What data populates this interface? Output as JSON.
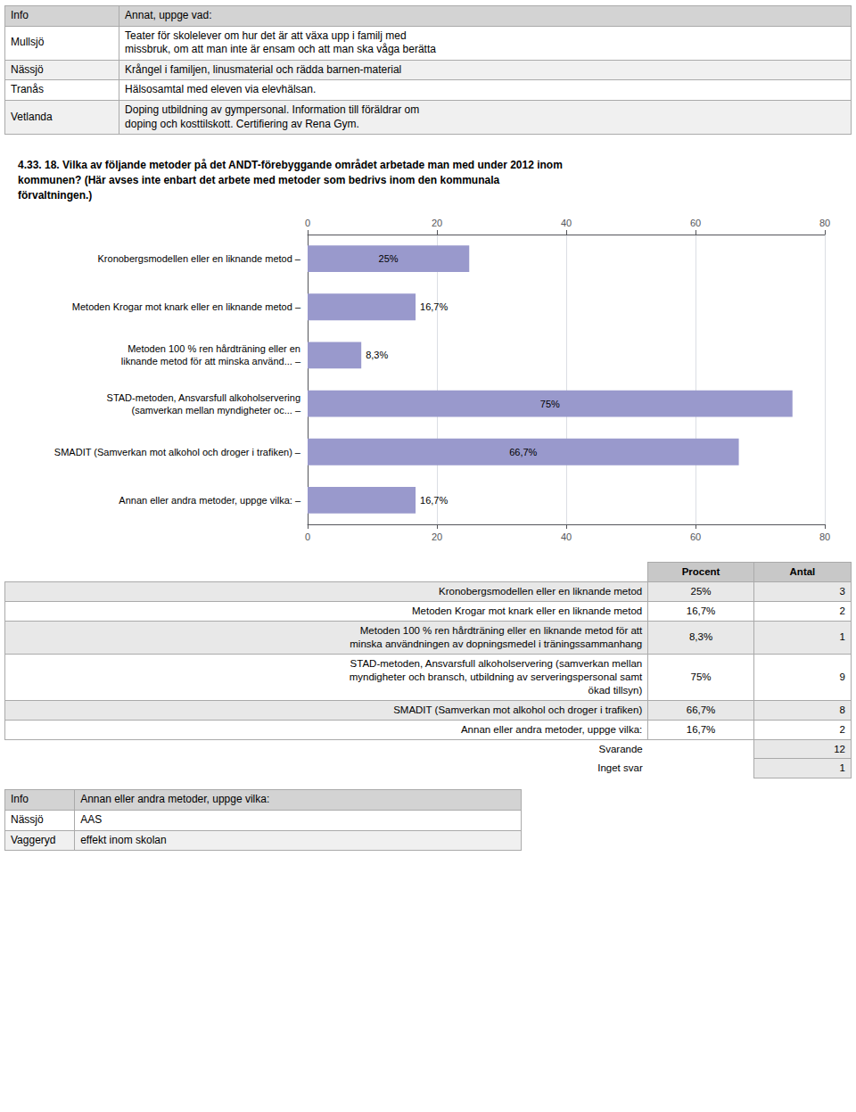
{
  "chart_data": {
    "type": "bar",
    "title": "4.33. 18. Vilka av följande metoder på det ANDT-förebyggande området arbetade man med under 2012 inom\nkommunen? (Här avses inte enbart det arbete med metoder som bedrivs inom den kommunala\nförvaltningen.)",
    "categories": [
      "Kronobergsmodellen eller en liknande metod –",
      "Metoden Krogar mot knark eller en liknande metod –",
      "Metoden 100 % ren hårdträning eller en\nliknande metod för att minska använd... –",
      "STAD-metoden, Ansvarsfull alkoholservering\n(samverkan mellan myndigheter oc... –",
      "SMADIT (Samverkan mot alkohol och droger i trafiken) –",
      "Annan eller andra metoder, uppge vilka: –"
    ],
    "values": [
      25.0,
      16.7,
      8.3,
      75.0,
      66.7,
      16.7
    ],
    "value_labels": [
      "25%",
      "16,7%",
      "8,3%",
      "75%",
      "66,7%",
      "16,7%"
    ],
    "color": "#9999cc",
    "orientation": "horizontal",
    "data_labels": true,
    "grid": true,
    "xlim": [
      0,
      80
    ],
    "xticks": [
      0,
      20,
      40,
      60,
      80
    ],
    "annotations": [
      [
        [
          "Info",
          "Annat, uppge vad:"
        ],
        [
          "Mullsjö",
          "Teater för skolelever om hur det är att växa upp i familj med\nmissbruk, om att man inte är ensam och att man ska våga berätta"
        ],
        [
          "Nässjö",
          "Krångel i familjen, linusmaterial och rädda barnen-material"
        ],
        [
          "Tranås",
          "Hälsosamtal med eleven via elevhälsan."
        ],
        [
          "Vetlanda",
          "Doping utbildning av gympersonal. Information till föräldrar om\ndoping och kosttilskott. Certifiering av Rena Gym."
        ]
      ],
      [
        [
          "Procent",
          "Antal"
        ],
        [
          "Kronobergsmodellen eller en liknande metod",
          "25%",
          "3"
        ],
        [
          "Metoden Krogar mot knark eller en liknande metod",
          "16,7%",
          "2"
        ],
        [
          "Metoden 100 % ren hårdträning eller en liknande metod för att\nminska användningen av dopningsmedel i träningssammanhang",
          "8,3%",
          "1"
        ],
        [
          "STAD-metoden, Ansvarsfull alkoholservering (samverkan mellan\nmyndigheter och bransch, utbildning av serveringspersonal samt\nökad tillsyn)",
          "75%",
          "9"
        ],
        [
          "SMADIT (Samverkan mot alkohol och droger i trafiken)",
          "66,7%",
          "8"
        ],
        [
          "Annan eller andra metoder, uppge vilka:",
          "16,7%",
          "2"
        ],
        [
          "Svarande",
          "12"
        ],
        [
          "Inget svar",
          "1"
        ]
      ],
      [
        [
          "Info",
          "Annan eller andra metoder, uppge vilka:"
        ],
        [
          "Nässjö",
          "AAS"
        ],
        [
          "Vaggeryd",
          "effekt inom skolan"
        ]
      ]
    ]
  }
}
